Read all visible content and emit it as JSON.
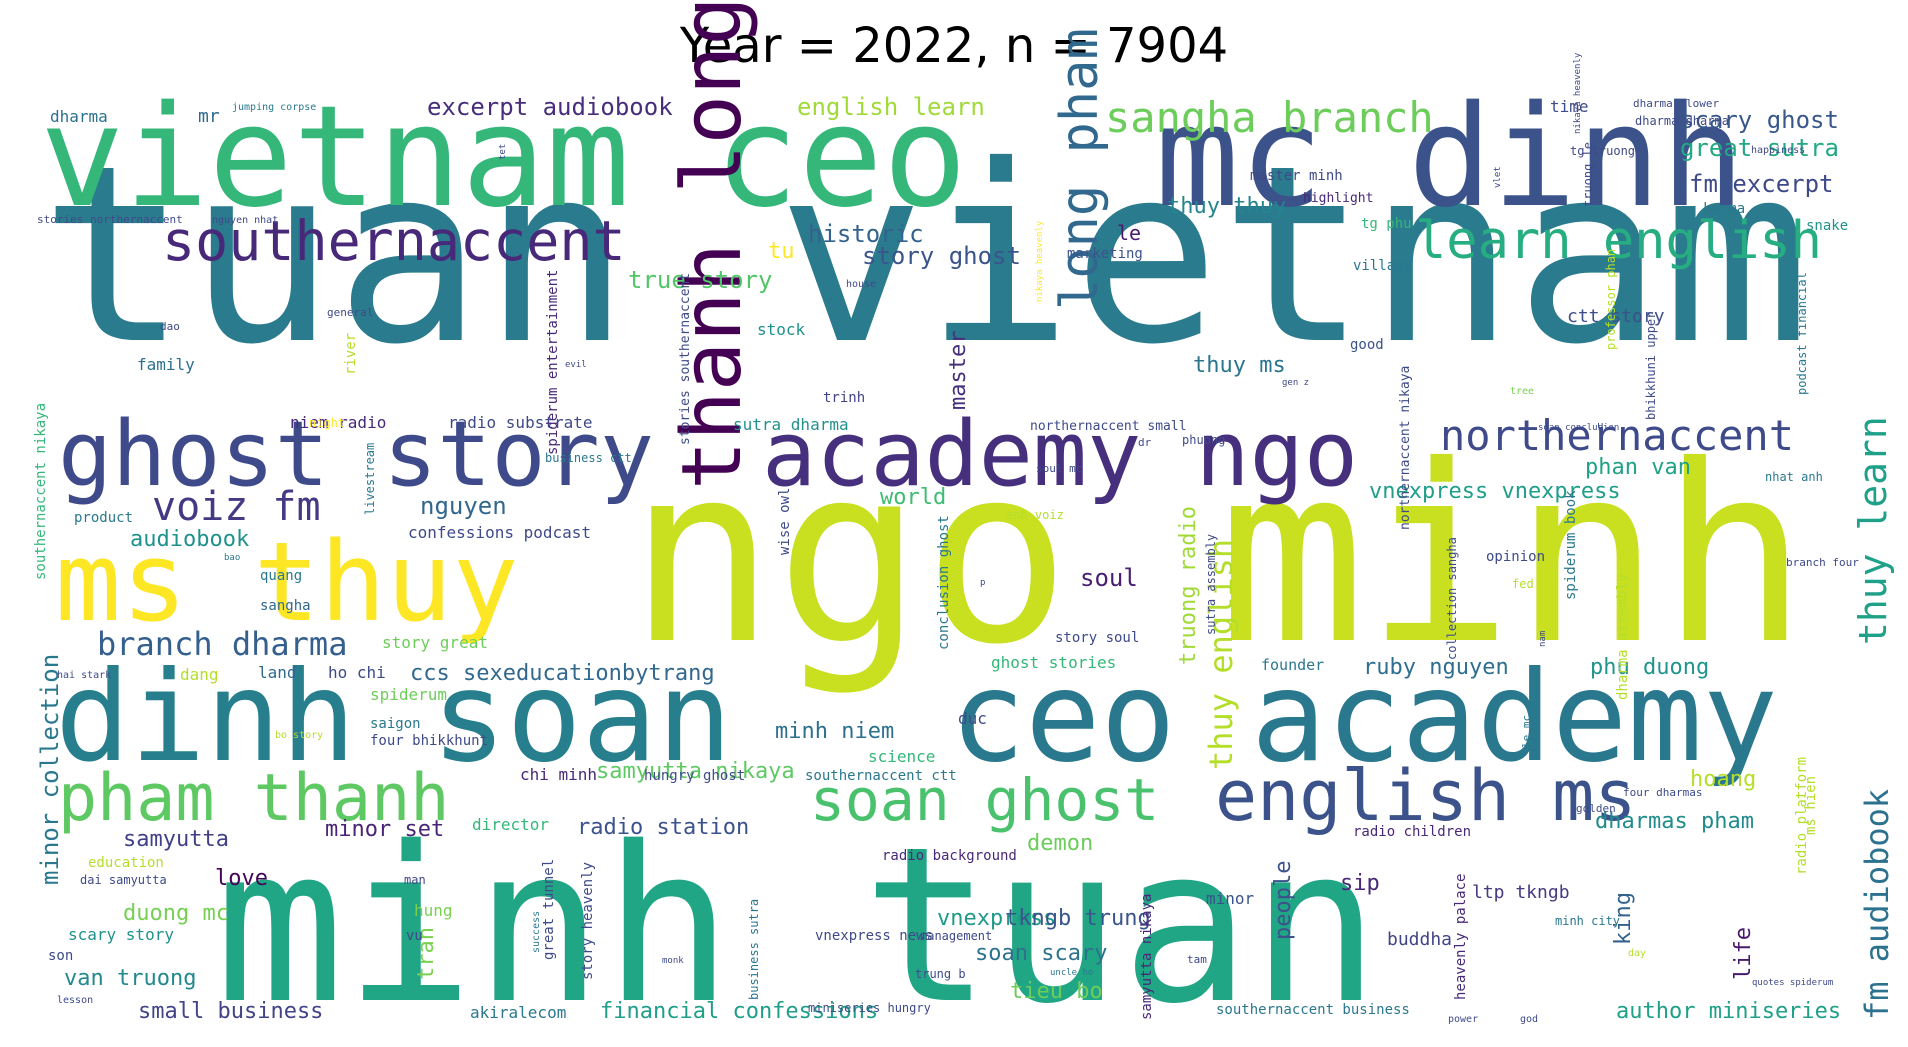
{
  "title": "Year = 2022, n = 7904",
  "palette": "viridis",
  "words": [
    {
      "text": "tuan vietnam",
      "color": "#2b7b8e"
    },
    {
      "text": "ngo minh",
      "color": "#c8e020"
    },
    {
      "text": "minh tuan",
      "color": "#21a685"
    },
    {
      "text": "vietnam ceo",
      "color": "#35b779"
    },
    {
      "text": "mc dinh",
      "color": "#3b528b"
    },
    {
      "text": "dinh soan",
      "color": "#277f8e"
    },
    {
      "text": "ceo academy",
      "color": "#2a788e"
    },
    {
      "text": "ms thuy",
      "color": "#fde725"
    },
    {
      "text": "ghost story",
      "color": "#3e4a89"
    },
    {
      "text": "academy ngo",
      "color": "#46307e"
    },
    {
      "text": "thanh long",
      "color": "#440154"
    },
    {
      "text": "pham thanh",
      "color": "#5ec962"
    },
    {
      "text": "soan ghost",
      "color": "#4ac16d"
    },
    {
      "text": "english ms",
      "color": "#3b528b"
    },
    {
      "text": "southernaccent",
      "color": "#482878"
    },
    {
      "text": "learn english",
      "color": "#26ad81"
    },
    {
      "text": "long pham",
      "color": "#31688e"
    },
    {
      "text": "sangha branch",
      "color": "#6ccd5a"
    },
    {
      "text": "northernaccent",
      "color": "#3e4a89"
    },
    {
      "text": "thuy learn",
      "color": "#1fa088"
    },
    {
      "text": "voiz fm",
      "color": "#443983"
    },
    {
      "text": "branch dharma",
      "color": "#355f8d"
    },
    {
      "text": "fm audiobook",
      "color": "#2c728e"
    },
    {
      "text": "thuy english",
      "color": "#b5de2b"
    },
    {
      "text": "excerpt audiobook",
      "color": "#472d7b"
    },
    {
      "text": "english learn",
      "color": "#a0da39"
    },
    {
      "text": "scary ghost",
      "color": "#38588c"
    },
    {
      "text": "great sutra",
      "color": "#22a884"
    },
    {
      "text": "fm excerpt",
      "color": "#3e4989"
    },
    {
      "text": "historic",
      "color": "#33638d"
    },
    {
      "text": "story ghost",
      "color": "#3a548c"
    },
    {
      "text": "true story",
      "color": "#52c569"
    },
    {
      "text": "thuy thuy",
      "color": "#25858e"
    },
    {
      "text": "thuy ms",
      "color": "#2a768e"
    },
    {
      "text": "ctt story",
      "color": "#3d4e8a"
    },
    {
      "text": "nguyen",
      "color": "#31678e"
    },
    {
      "text": "audiobook",
      "color": "#20928c"
    },
    {
      "text": "vnexpress vnexpress",
      "color": "#1f9e89"
    },
    {
      "text": "phan van",
      "color": "#1fa287"
    },
    {
      "text": "world",
      "color": "#3fbc73"
    },
    {
      "text": "soul",
      "color": "#481f70"
    },
    {
      "text": "ccs sexeducationbytrang",
      "color": "#31688e"
    },
    {
      "text": "ruby nguyen",
      "color": "#2e6e8e"
    },
    {
      "text": "phu duong",
      "color": "#1f958b"
    },
    {
      "text": "minh niem",
      "color": "#2d708e"
    },
    {
      "text": "samyutta nikaya",
      "color": "#5ec962"
    },
    {
      "text": "radio station",
      "color": "#3b528b"
    },
    {
      "text": "dharmas pham",
      "color": "#228c8d"
    },
    {
      "text": "hoang",
      "color": "#b5de2b"
    },
    {
      "text": "minor set",
      "color": "#482576"
    },
    {
      "text": "samyutta",
      "color": "#424086"
    },
    {
      "text": "minor collection",
      "color": "#2a788e"
    },
    {
      "text": "vnexpress",
      "color": "#1f9a8a"
    },
    {
      "text": "demon",
      "color": "#6ccd5a"
    },
    {
      "text": "tkngb trung",
      "color": "#39568c"
    },
    {
      "text": "duong mc",
      "color": "#75d054"
    },
    {
      "text": "love",
      "color": "#450559"
    },
    {
      "text": "soan scary",
      "color": "#2c728e"
    },
    {
      "text": "tieu bo",
      "color": "#6ccd5a"
    },
    {
      "text": "van truong",
      "color": "#23898e"
    },
    {
      "text": "small business",
      "color": "#414487"
    },
    {
      "text": "financial confessions",
      "color": "#1f9e89"
    },
    {
      "text": "author miniseries",
      "color": "#1fa088"
    },
    {
      "text": "sip",
      "color": "#482878"
    },
    {
      "text": "king",
      "color": "#33638d"
    },
    {
      "text": "life",
      "color": "#481a6c"
    },
    {
      "text": "people",
      "color": "#3b528b"
    },
    {
      "text": "ltp tkngb",
      "color": "#443983"
    },
    {
      "text": "buddha",
      "color": "#414487"
    },
    {
      "text": "truong radio",
      "color": "#a0da39"
    },
    {
      "text": "tran",
      "color": "#7ad151"
    },
    {
      "text": "master",
      "color": "#46307e"
    },
    {
      "text": "le",
      "color": "#481b6d"
    },
    {
      "text": "tu",
      "color": "#fde725"
    },
    {
      "text": "mr",
      "color": "#31688e"
    },
    {
      "text": "dharma",
      "color": "#2d708e"
    },
    {
      "text": "family",
      "color": "#2d708e"
    },
    {
      "text": "stock",
      "color": "#21918c"
    },
    {
      "text": "trinh",
      "color": "#414487"
    },
    {
      "text": "time",
      "color": "#3e4a89"
    },
    {
      "text": "marketing",
      "color": "#3b528b"
    },
    {
      "text": "good",
      "color": "#3b528b"
    },
    {
      "text": "karma",
      "color": "#2a788e"
    },
    {
      "text": "snake",
      "color": "#21918c"
    },
    {
      "text": "master minh",
      "color": "#3e4a89"
    },
    {
      "text": "highlight",
      "color": "#482878"
    },
    {
      "text": "tg phu",
      "color": "#35b779"
    },
    {
      "text": "village",
      "color": "#2a788e"
    },
    {
      "text": "niem radio",
      "color": "#482878"
    },
    {
      "text": "radio substrate",
      "color": "#3e4a89"
    },
    {
      "text": "sutra dharma",
      "color": "#21918c"
    },
    {
      "text": "northernaccent small",
      "color": "#3e4a89"
    },
    {
      "text": "confessions podcast",
      "color": "#3e4a89"
    },
    {
      "text": "quang",
      "color": "#2a788e"
    },
    {
      "text": "sangha",
      "color": "#31688e"
    },
    {
      "text": "story great",
      "color": "#6ccd5a"
    },
    {
      "text": "ho chi",
      "color": "#3e4a89"
    },
    {
      "text": "land",
      "color": "#31688e"
    },
    {
      "text": "dang",
      "color": "#b5de2b"
    },
    {
      "text": "spiderum",
      "color": "#6ccd5a"
    },
    {
      "text": "saigon",
      "color": "#2a788e"
    },
    {
      "text": "four bhikkhunt",
      "color": "#3e4a89"
    },
    {
      "text": "chi minh",
      "color": "#482878"
    },
    {
      "text": "hungry ghost",
      "color": "#3e4a89"
    },
    {
      "text": "southernaccent ctt",
      "color": "#2a788e"
    },
    {
      "text": "director",
      "color": "#35b779"
    },
    {
      "text": "radio background",
      "color": "#482878"
    },
    {
      "text": "ghost stories",
      "color": "#35b779"
    },
    {
      "text": "story soul",
      "color": "#3e4a89"
    },
    {
      "text": "founder",
      "color": "#2a788e"
    },
    {
      "text": "duc",
      "color": "#3e4a89"
    },
    {
      "text": "science",
      "color": "#35b779"
    },
    {
      "text": "opinion",
      "color": "#3e4a89"
    },
    {
      "text": "radio children",
      "color": "#482878"
    },
    {
      "text": "minor",
      "color": "#3b528b"
    },
    {
      "text": "hung",
      "color": "#7ad151"
    },
    {
      "text": "vu",
      "color": "#3e4a89"
    },
    {
      "text": "scary story",
      "color": "#21918c"
    },
    {
      "text": "son",
      "color": "#3e4a89"
    },
    {
      "text": "education",
      "color": "#b5de2b"
    },
    {
      "text": "dai samyutta",
      "color": "#3e4a89"
    },
    {
      "text": "man",
      "color": "#3e4a89"
    },
    {
      "text": "product",
      "color": "#2a788e"
    },
    {
      "text": "akiralecom",
      "color": "#2a788e"
    },
    {
      "text": "miniseries hungry",
      "color": "#3e4a89"
    },
    {
      "text": "southernaccent business",
      "color": "#2a788e"
    },
    {
      "text": "trung b",
      "color": "#3e4a89"
    },
    {
      "text": "management",
      "color": "#3e4a89"
    },
    {
      "text": "vnexpress news",
      "color": "#3e4a89"
    },
    {
      "text": "southernaccent nikaya",
      "color": "#35b779"
    },
    {
      "text": "livestream",
      "color": "#2a788e"
    },
    {
      "text": "stories southernaccent",
      "color": "#3e4a89"
    },
    {
      "text": "spiderum entertainment",
      "color": "#482878"
    },
    {
      "text": "wise owl",
      "color": "#3e4a89"
    },
    {
      "text": "conclusion ghost",
      "color": "#2a788e"
    },
    {
      "text": "northernaccent nikaya",
      "color": "#3e4a89"
    },
    {
      "text": "collection sangha",
      "color": "#3e4a89"
    },
    {
      "text": "sutra assembly",
      "color": "#3e4a89"
    },
    {
      "text": "spiderum book",
      "color": "#2a788e"
    },
    {
      "text": "dharma assembly",
      "color": "#b5de2b"
    },
    {
      "text": "professor phan",
      "color": "#b5de2b"
    },
    {
      "text": "bhikkhuni upper",
      "color": "#3e4a89"
    },
    {
      "text": "podcast financial",
      "color": "#2a788e"
    },
    {
      "text": "radio platform",
      "color": "#b5de2b"
    },
    {
      "text": "ms hien",
      "color": "#b5de2b"
    },
    {
      "text": "great tunnel",
      "color": "#3e4a89"
    },
    {
      "text": "story heavenly",
      "color": "#3e4a89"
    },
    {
      "text": "business sutra",
      "color": "#2a788e"
    },
    {
      "text": "heavenly palace",
      "color": "#482878"
    },
    {
      "text": "samyutta nikaya",
      "color": "#482878"
    },
    {
      "text": "minh city",
      "color": "#2a788e"
    },
    {
      "text": "truong le",
      "color": "#3e4a89"
    },
    {
      "text": "tg truong",
      "color": "#3e4a89"
    },
    {
      "text": "dharma dharma",
      "color": "#3e4a89"
    },
    {
      "text": "dharma flower",
      "color": "#3e4a89"
    },
    {
      "text": "jumping corpse",
      "color": "#2a788e"
    },
    {
      "text": "stories northernaccent",
      "color": "#3e4a89"
    },
    {
      "text": "nguyen nhat",
      "color": "#3e4a89"
    },
    {
      "text": "general",
      "color": "#3e4a89"
    },
    {
      "text": "house",
      "color": "#3e4a89"
    },
    {
      "text": "river",
      "color": "#b5de2b"
    },
    {
      "text": "dao",
      "color": "#3e4a89"
    },
    {
      "text": "evil",
      "color": "#3e4a89"
    },
    {
      "text": "gen z",
      "color": "#3e4a89"
    },
    {
      "text": "tree",
      "color": "#7ad151"
    },
    {
      "text": "night",
      "color": "#fde725"
    },
    {
      "text": "dr",
      "color": "#3e4a89"
    },
    {
      "text": "phuong",
      "color": "#3e4a89"
    },
    {
      "text": "u",
      "color": "#3e4a89"
    },
    {
      "text": "nhat anh",
      "color": "#2a788e"
    },
    {
      "text": "soul mc",
      "color": "#3e4a89"
    },
    {
      "text": "business ctt",
      "color": "#2a788e"
    },
    {
      "text": "anh voiz",
      "color": "#b5de2b"
    },
    {
      "text": "bao",
      "color": "#2a788e"
    },
    {
      "text": "p",
      "color": "#3e4a89"
    },
    {
      "text": "fed",
      "color": "#b5de2b"
    },
    {
      "text": "branch four",
      "color": "#3e4a89"
    },
    {
      "text": "nam",
      "color": "#3e4a89"
    },
    {
      "text": "le mc",
      "color": "#2a788e"
    },
    {
      "text": "hai stark",
      "color": "#3e4a89"
    },
    {
      "text": "bo story",
      "color": "#b5de2b"
    },
    {
      "text": "four dharmas",
      "color": "#3e4a89"
    },
    {
      "text": "golden",
      "color": "#3e4a89"
    },
    {
      "text": "success",
      "color": "#2a788e"
    },
    {
      "text": "monk",
      "color": "#3e4a89"
    },
    {
      "text": "lesson",
      "color": "#3e4a89"
    },
    {
      "text": "uncle ho",
      "color": "#2a788e"
    },
    {
      "text": "tam",
      "color": "#3e4a89"
    },
    {
      "text": "power",
      "color": "#3e4a89"
    },
    {
      "text": "god",
      "color": "#3e4a89"
    },
    {
      "text": "day",
      "color": "#b5de2b"
    },
    {
      "text": "quotes spiderum",
      "color": "#3e4a89"
    },
    {
      "text": "happiness",
      "color": "#3e4a89"
    },
    {
      "text": "nikaya heavenly",
      "color": "#fde725"
    },
    {
      "text": "soan conclusion",
      "color": "#3e4a89"
    },
    {
      "text": "vlet",
      "color": "#3e4a89"
    },
    {
      "text": "tet",
      "color": "#3e4a89"
    },
    {
      "text": "nikaya heavenly",
      "color": "#3e4a89"
    }
  ]
}
